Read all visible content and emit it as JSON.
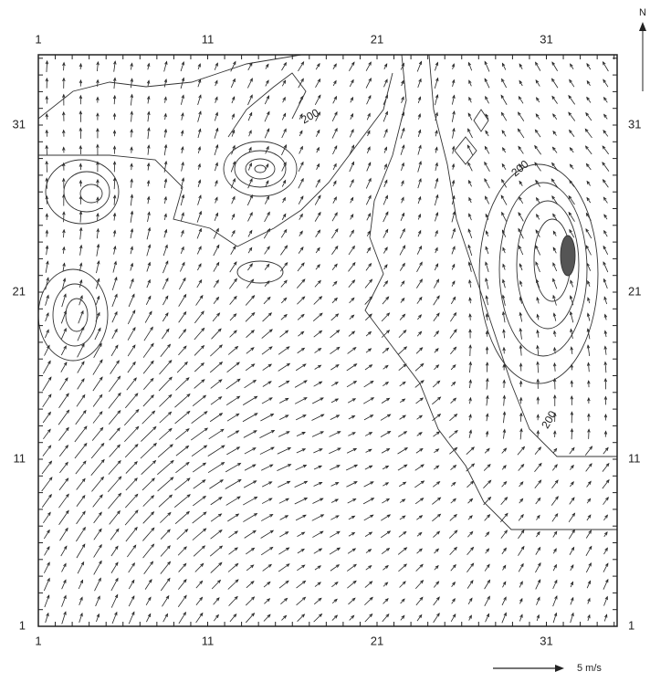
{
  "map": {
    "north_label": "N",
    "scale_label": "5 m/s",
    "top_labels": [
      1,
      11,
      21,
      31
    ],
    "bottom_labels": [
      1,
      11,
      21,
      31
    ],
    "left_labels": [
      1,
      11,
      21,
      31
    ],
    "right_labels": [
      1,
      11,
      21,
      31
    ],
    "contour_labels": [
      "200",
      "200",
      "200"
    ]
  }
}
